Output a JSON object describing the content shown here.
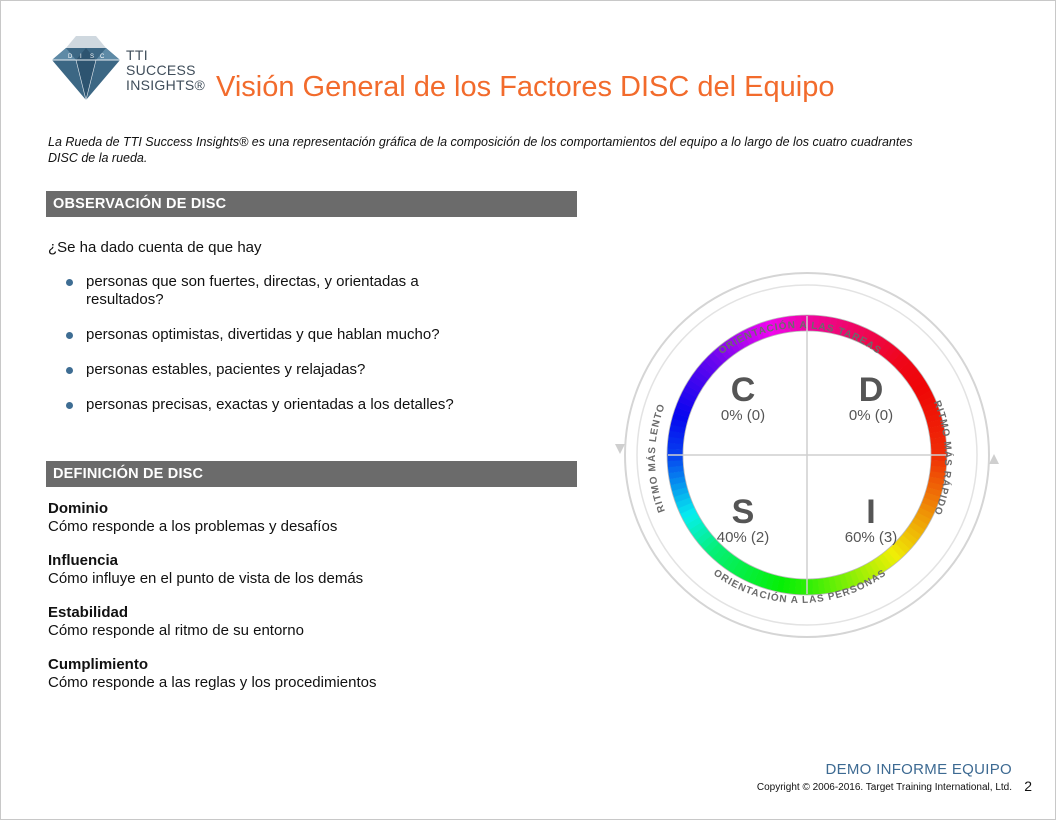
{
  "header": {
    "logo_lines": [
      "TTI",
      "SUCCESS",
      "INSIGHTS®"
    ],
    "title": "Visión General de los Factores DISC del Equipo"
  },
  "intro": "La Rueda de TTI Success Insights® es una representación gráfica de la composición de los comportamientos del equipo a lo largo de los cuatro cuadrantes DISC de la rueda.",
  "observation": {
    "heading": "OBSERVACIÓN DE DISC",
    "question": "¿Se ha dado cuenta de que hay",
    "bullets": [
      "personas que son fuertes, directas, y orientadas a resultados?",
      "personas optimistas, divertidas y que hablan mucho?",
      "personas estables, pacientes y relajadas?",
      "personas precisas, exactas y orientadas a los detalles?"
    ]
  },
  "definition": {
    "heading": "DEFINICIÓN DE DISC",
    "items": [
      {
        "term": "Dominio",
        "desc": "Cómo responde a los problemas y desafíos"
      },
      {
        "term": "Influencia",
        "desc": "Cómo influye en el punto de vista de los demás"
      },
      {
        "term": "Estabilidad",
        "desc": "Cómo responde al ritmo de su entorno"
      },
      {
        "term": "Cumplimiento",
        "desc": "Cómo responde a las reglas y los procedimientos"
      }
    ]
  },
  "wheel": {
    "top_label": "ORIENTACIÓN A LAS TAREAS",
    "bottom_label": "ORIENTACIÓN A LAS PERSONAS",
    "left_label": "RITMO MÁS LENTO",
    "right_label": "RITMO MÁS RÁPIDO",
    "quadrants": {
      "C": {
        "letter": "C",
        "value": "0% (0)"
      },
      "D": {
        "letter": "D",
        "value": "0% (0)"
      },
      "S": {
        "letter": "S",
        "value": "40% (2)"
      },
      "I": {
        "letter": "I",
        "value": "60% (3)"
      }
    }
  },
  "footer": {
    "report": "DEMO INFORME EQUIPO",
    "copyright": "Copyright © 2006-2016. Target Training International, Ltd.",
    "page": "2"
  }
}
